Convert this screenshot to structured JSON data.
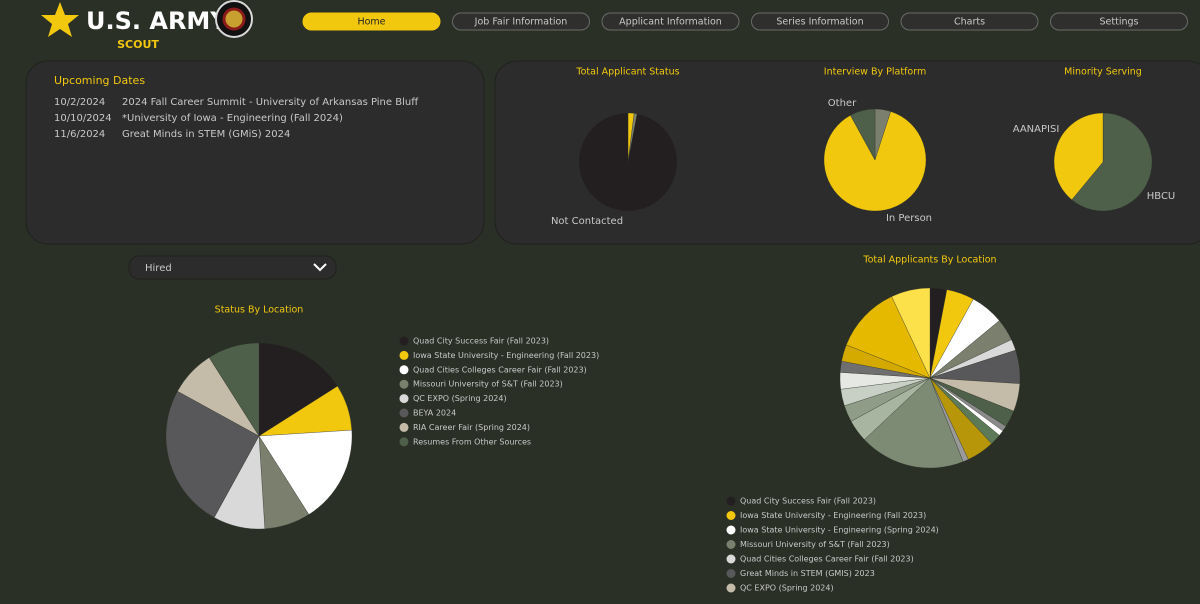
{
  "header": {
    "brand": "U.S. ARMY",
    "sub": "SCOUT"
  },
  "nav": [
    "Home",
    "Job Fair Information",
    "Applicant Information",
    "Series Information",
    "Charts",
    "Settings"
  ],
  "upcoming": {
    "title": "Upcoming Dates",
    "rows": [
      [
        "10/2/2024",
        "2024 Fall Career Summit - University of Arkansas Pine Bluff"
      ],
      [
        "10/10/2024",
        "*University of Iowa - Engineering (Fall 2024)"
      ],
      [
        "11/6/2024",
        "Great Minds in STEM (GMiS) 2024"
      ]
    ]
  },
  "filter": "Hired",
  "chart_data": [
    {
      "type": "pie",
      "title": "Total Applicant Status",
      "categories": [
        null,
        null,
        "Not Contacted"
      ],
      "values": [
        2,
        1,
        97
      ],
      "colors": [
        "#f2c80f",
        "#7a7f6e",
        "#231f20"
      ]
    },
    {
      "type": "pie",
      "title": "Interview By Platform",
      "categories": [
        null,
        "In Person",
        "Other"
      ],
      "values": [
        5,
        87,
        8
      ],
      "colors": [
        "#7a7f6e",
        "#f2c80f",
        "#4e5f4a"
      ]
    },
    {
      "type": "pie",
      "title": "Minority Serving",
      "categories": [
        "HBCU",
        "AANAPISI"
      ],
      "values": [
        61,
        39
      ],
      "colors": [
        "#4e5f4a",
        "#f2c80f"
      ]
    },
    {
      "type": "pie",
      "title": "Status By Location",
      "legend": "right",
      "categories": [
        "Quad City Success Fair (Fall 2023)",
        "Iowa State University - Engineering (Fall 2023)",
        "Quad Cities Colleges Career Fair (Fall 2023)",
        "Missouri University of S&T (Fall 2023)",
        "QC EXPO (Spring 2024)",
        "BEYA 2024",
        "RIA Career Fair (Spring 2024)",
        "Resumes From Other Sources"
      ],
      "values": [
        16,
        8,
        17,
        8,
        9,
        25,
        8,
        9
      ],
      "colors": [
        "#231f20",
        "#f2c80f",
        "#ffffff",
        "#7a7f6e",
        "#d9d9d9",
        "#58585a",
        "#c4bba8",
        "#4e5f4a"
      ]
    },
    {
      "type": "pie",
      "title": "Total Applicants By Location",
      "legend": "bottom",
      "categories": [
        "Quad City Success Fair (Fall 2023)",
        "Iowa State University - Engineering (Fall 2023)",
        "Iowa State University - Engineering (Spring 2024)",
        "Missouri University of S&T (Fall 2023)",
        "Quad Cities Colleges Career Fair (Fall 2023)",
        "Great Minds in STEM (GMIS) 2023",
        "QC EXPO (Spring 2024)",
        null,
        null,
        null,
        null,
        null,
        null,
        null,
        null,
        null,
        null,
        null,
        null,
        null,
        null,
        null
      ],
      "values": [
        3,
        5,
        6,
        4,
        2,
        6,
        5,
        3,
        1,
        1,
        2,
        5,
        1,
        19,
        4,
        3,
        3,
        3,
        2,
        3,
        12,
        7
      ],
      "colors": [
        "#231f20",
        "#f2c80f",
        "#ffffff",
        "#7a7f6e",
        "#d9d9d9",
        "#58585a",
        "#c4bba8",
        "#4e5f4a",
        "#8a8a8a",
        "#ffffff",
        "#5d7a58",
        "#b8960a",
        "#9a9a9a",
        "#7d8a74",
        "#a8b5a0",
        "#8f9c88",
        "#c8cfc4",
        "#e6e8e4",
        "#6f6f6f",
        "#d4aa00",
        "#e4b900",
        "#fde14a"
      ]
    }
  ]
}
